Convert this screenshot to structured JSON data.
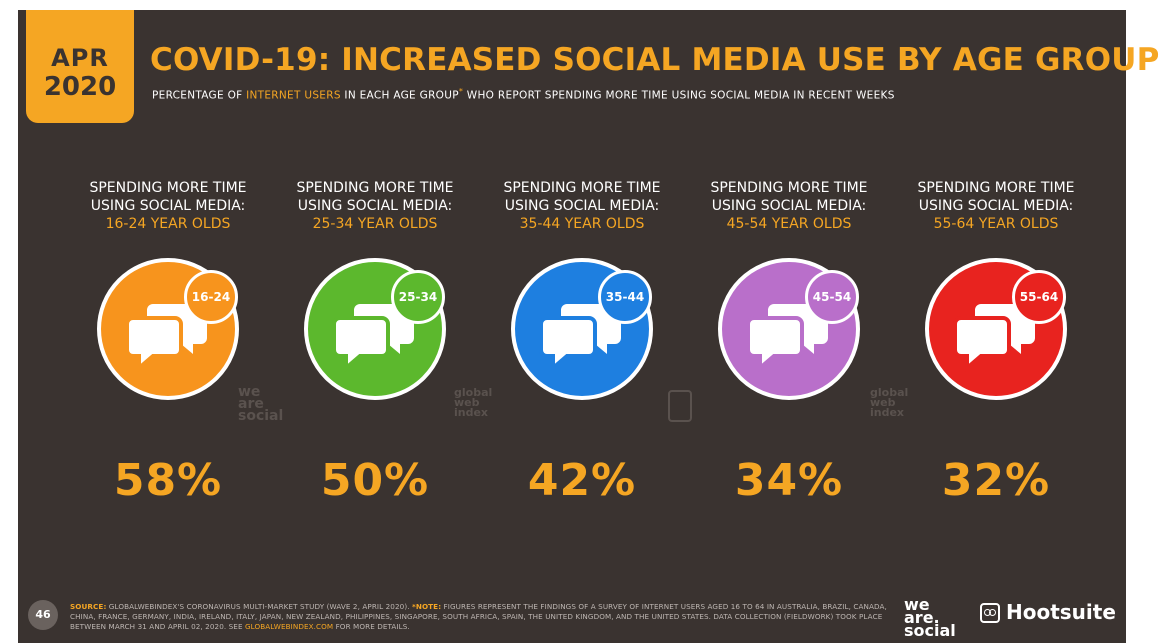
{
  "header": {
    "date_month": "APR",
    "date_year": "2020",
    "title": "COVID-19: INCREASED SOCIAL MEDIA USE BY AGE GROUP",
    "subtitle_pre": "PERCENTAGE OF ",
    "subtitle_highlight": "INTERNET USERS",
    "subtitle_mid": " IN EACH AGE GROUP",
    "subtitle_star": "*",
    "subtitle_post": " WHO REPORT SPENDING MORE TIME USING SOCIAL MEDIA IN RECENT WEEKS"
  },
  "groups": [
    {
      "line1": "SPENDING MORE TIME",
      "line2": "USING SOCIAL MEDIA:",
      "line3": "16-24 YEAR OLDS",
      "badge": "16-24",
      "value": "58%",
      "color": "#f7941d"
    },
    {
      "line1": "SPENDING MORE TIME",
      "line2": "USING SOCIAL MEDIA:",
      "line3": "25-34 YEAR OLDS",
      "badge": "25-34",
      "value": "50%",
      "color": "#5cb82d"
    },
    {
      "line1": "SPENDING MORE TIME",
      "line2": "USING SOCIAL MEDIA:",
      "line3": "35-44 YEAR OLDS",
      "badge": "35-44",
      "value": "42%",
      "color": "#1e7fe0"
    },
    {
      "line1": "SPENDING MORE TIME",
      "line2": "USING SOCIAL MEDIA:",
      "line3": "45-54 YEAR OLDS",
      "badge": "45-54",
      "value": "34%",
      "color": "#b96fca"
    },
    {
      "line1": "SPENDING MORE TIME",
      "line2": "USING SOCIAL MEDIA:",
      "line3": "55-64 YEAR OLDS",
      "badge": "55-64",
      "value": "32%",
      "color": "#e8231f"
    }
  ],
  "watermarks": {
    "was_line1": "we",
    "was_line2": "are",
    "was_line3": "social",
    "gwi_line1": "global",
    "gwi_line2": "web",
    "gwi_line3": "index"
  },
  "footer": {
    "page_number": "46",
    "source_label": "SOURCE:",
    "source_text": " GLOBALWEBINDEX'S CORONAVIRUS MULTI-MARKET STUDY (WAVE 2, APRIL 2020). ",
    "note_label": "*NOTE:",
    "note_text": " FIGURES REPRESENT THE FINDINGS OF A SURVEY OF INTERNET USERS AGED 16 TO 64 IN AUSTRALIA, BRAZIL, CANADA, CHINA, FRANCE, GERMANY, INDIA, IRELAND, ITALY, JAPAN, NEW ZEALAND, PHILIPPINES, SINGAPORE, SOUTH AFRICA, SPAIN, THE UNITED KINGDOM, AND THE UNITED STATES. DATA COLLECTION (FIELDWORK) TOOK PLACE BETWEEN MARCH 31 AND APRIL 02, 2020. SEE ",
    "link_text": "GLOBALWEBINDEX.COM",
    "tail_text": " FOR MORE DETAILS.",
    "brand_was_line1": "we",
    "brand_was_line2": "are.",
    "brand_was_line3": "social",
    "brand_hootsuite": "Hootsuite"
  }
}
